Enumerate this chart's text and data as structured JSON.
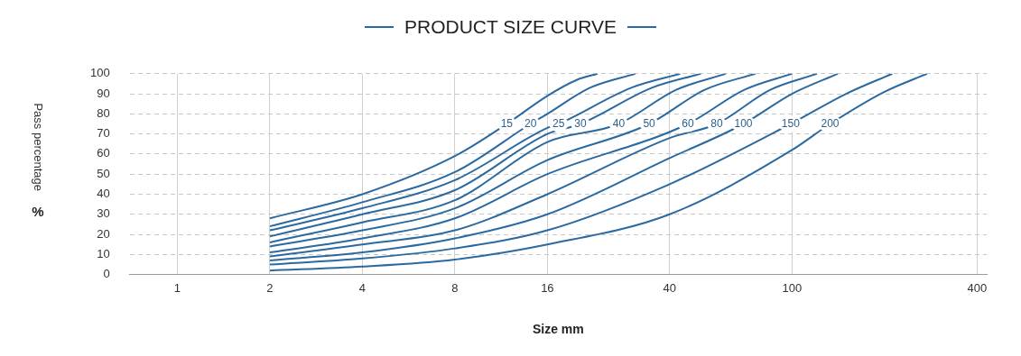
{
  "chart_data": {
    "type": "line",
    "title": "PRODUCT SIZE CURVE",
    "xlabel": "Size mm",
    "ylabel": "Pass percentage %",
    "log": "x",
    "xlim": [
      0.7,
      430
    ],
    "xticks": [
      1,
      2,
      4,
      8,
      16,
      40,
      100,
      400
    ],
    "ylim": [
      0,
      100
    ],
    "yticks": [
      0,
      10,
      20,
      30,
      40,
      50,
      60,
      70,
      80,
      90,
      100
    ],
    "grid": true,
    "marker": "none",
    "line_style": "solid",
    "series": [
      {
        "name": "15",
        "color": "#2b6aa0",
        "x": [
          2,
          4,
          8,
          11.8,
          16,
          20,
          23.3
        ],
        "values": [
          28,
          40,
          59,
          75,
          89,
          97,
          100
        ]
      },
      {
        "name": "20",
        "color": "#2b6aa0",
        "x": [
          2,
          4,
          8,
          14.1,
          16,
          22,
          30.9
        ],
        "values": [
          24,
          36,
          51,
          75,
          80,
          93,
          100
        ]
      },
      {
        "name": "25",
        "color": "#2b6aa0",
        "x": [
          2,
          4,
          8,
          16,
          17.4,
          30,
          43.3
        ],
        "values": [
          22,
          33,
          47,
          73,
          75,
          93,
          100
        ]
      },
      {
        "name": "30",
        "color": "#2b6aa0",
        "x": [
          2,
          4,
          8,
          16,
          20.5,
          35,
          50.5
        ],
        "values": [
          19,
          30,
          42,
          70,
          75,
          93,
          100
        ]
      },
      {
        "name": "40",
        "color": "#2b6aa0",
        "x": [
          2,
          4,
          8,
          16,
          27.3,
          42,
          60.9
        ],
        "values": [
          16,
          26,
          37,
          66,
          75,
          92,
          100
        ]
      },
      {
        "name": "50",
        "color": "#2b6aa0",
        "x": [
          2,
          4,
          8,
          16,
          34.3,
          52,
          76
        ],
        "values": [
          14,
          22,
          33,
          57,
          75,
          92,
          100
        ]
      },
      {
        "name": "60",
        "color": "#2b6aa0",
        "x": [
          2,
          4,
          8,
          16,
          45.8,
          70,
          100
        ],
        "values": [
          11,
          18,
          28,
          50,
          75,
          92,
          100
        ]
      },
      {
        "name": "80",
        "color": "#2b6aa0",
        "x": [
          2,
          4,
          8,
          16,
          40,
          56.9,
          85,
          120.6
        ],
        "values": [
          9,
          15,
          22,
          40,
          68,
          75,
          92,
          100
        ]
      },
      {
        "name": "100",
        "color": "#2b6aa0",
        "x": [
          2,
          4,
          8,
          16,
          40,
          69.5,
          100,
          141
        ],
        "values": [
          7,
          11,
          18,
          30,
          58,
          75,
          90,
          100
        ]
      },
      {
        "name": "150",
        "color": "#2b6aa0",
        "x": [
          2,
          4,
          8,
          16,
          40,
          99,
          150,
          212
        ],
        "values": [
          5,
          8,
          13,
          22,
          45,
          75,
          90,
          100
        ]
      },
      {
        "name": "200",
        "color": "#2b6aa0",
        "x": [
          2,
          4,
          8,
          16,
          40,
          100,
          133,
          200,
          275
        ],
        "values": [
          2,
          4,
          7.5,
          15,
          30,
          62,
          75,
          91,
          100
        ]
      }
    ]
  }
}
